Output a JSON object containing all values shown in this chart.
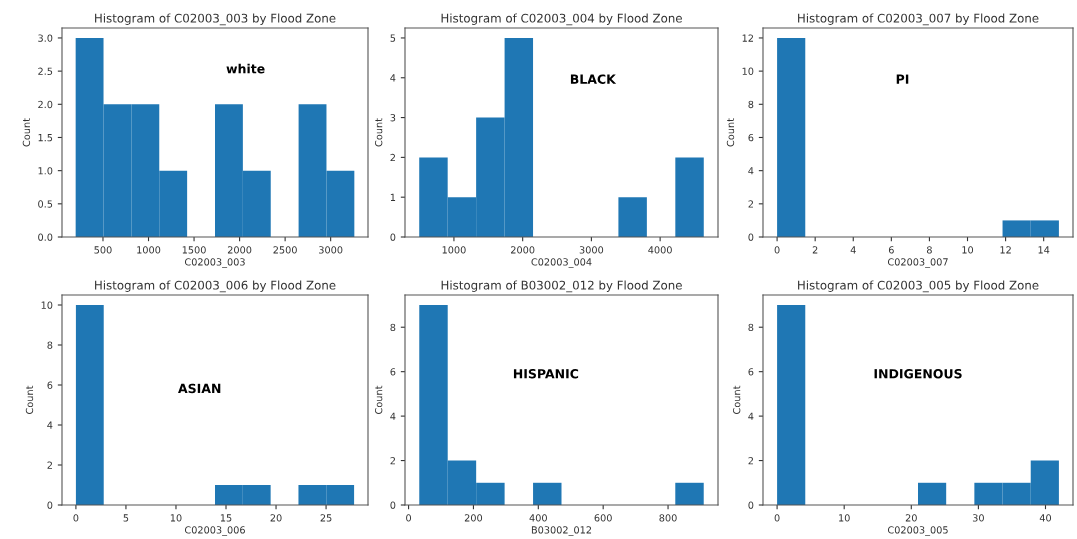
{
  "chart_data": [
    {
      "type": "histogram",
      "title": "Histogram of C02003_003 by Flood Zone",
      "xlabel": "C02003_003",
      "ylabel": "Count",
      "annotations": [
        "white"
      ],
      "color": "#1f77b4",
      "bins": [
        200,
        506,
        812,
        1118,
        1424,
        1730,
        2036,
        2342,
        2648,
        2954,
        3260
      ],
      "values": [
        3,
        2,
        2,
        1,
        0,
        2,
        1,
        0,
        2,
        1
      ],
      "xlim": [
        50,
        3410
      ],
      "xticks": [
        500,
        1000,
        1500,
        2000,
        2500,
        3000
      ],
      "ylim": [
        0,
        3.15
      ],
      "yticks": [
        {
          "value": 0,
          "label": "0.0"
        },
        {
          "value": 0.5,
          "label": "0.5"
        },
        {
          "value": 1,
          "label": "1.0"
        },
        {
          "value": 1.5,
          "label": "1.5"
        },
        {
          "value": 2,
          "label": "2.0"
        },
        {
          "value": 2.5,
          "label": "2.5"
        },
        {
          "value": 3,
          "label": "3.0"
        }
      ]
    },
    {
      "type": "histogram",
      "title": "Histogram of C02003_004 by Flood Zone",
      "xlabel": "C02003_004",
      "ylabel": "Count",
      "annotations": [
        "BLACK"
      ],
      "color": "#1f77b4",
      "bins": [
        495,
        909,
        1323,
        1737,
        2151,
        2565,
        2979,
        3393,
        3807,
        4221,
        4635
      ],
      "values": [
        2,
        1,
        3,
        5,
        0,
        0,
        0,
        1,
        0,
        2
      ],
      "xlim": [
        288,
        4842
      ],
      "xticks": [
        1000,
        2000,
        3000,
        4000
      ],
      "ylim": [
        0,
        5.25
      ],
      "yticks": [
        0,
        1,
        2,
        3,
        4,
        5
      ]
    },
    {
      "type": "histogram",
      "title": "Histogram of C02003_007 by Flood Zone",
      "xlabel": "C02003_007",
      "ylabel": "Count",
      "annotations": [
        "PI"
      ],
      "color": "#1f77b4",
      "bins": [
        0,
        1.48,
        2.96,
        4.44,
        5.92,
        7.4,
        8.88,
        10.36,
        11.84,
        13.32,
        14.8
      ],
      "values": [
        12,
        0,
        0,
        0,
        0,
        0,
        0,
        0,
        1,
        1
      ],
      "xlim": [
        -0.74,
        15.54
      ],
      "xticks": [
        0,
        2,
        4,
        6,
        8,
        10,
        12,
        14
      ],
      "ylim": [
        0,
        12.6
      ],
      "yticks": [
        0,
        2,
        4,
        6,
        8,
        10,
        12
      ]
    },
    {
      "type": "histogram",
      "title": "Histogram of C02003_006 by Flood Zone",
      "xlabel": "C02003_006",
      "ylabel": "Count",
      "annotations": [
        "ASIAN"
      ],
      "color": "#1f77b4",
      "bins": [
        0,
        2.78,
        5.56,
        8.34,
        11.12,
        13.9,
        16.68,
        19.46,
        22.24,
        25.02,
        27.8
      ],
      "values": [
        10,
        0,
        0,
        0,
        0,
        1,
        1,
        0,
        1,
        1
      ],
      "xlim": [
        -1.39,
        29.19
      ],
      "xticks": [
        0,
        5,
        10,
        15,
        20,
        25
      ],
      "ylim": [
        0,
        10.5
      ],
      "yticks": [
        0,
        2,
        4,
        6,
        8,
        10
      ]
    },
    {
      "type": "histogram",
      "title": "Histogram of B03002_012 by Flood Zone",
      "xlabel": "B03002_012",
      "ylabel": "Count",
      "annotations": [
        "HISPANIC"
      ],
      "color": "#1f77b4",
      "bins": [
        33,
        120.7,
        208.4,
        296.1,
        383.8,
        471.5,
        559.2,
        646.9,
        734.6,
        822.3,
        910
      ],
      "values": [
        9,
        2,
        1,
        0,
        1,
        0,
        0,
        0,
        0,
        1
      ],
      "xlim": [
        -11,
        954
      ],
      "xticks": [
        0,
        200,
        400,
        600,
        800
      ],
      "ylim": [
        0,
        9.45
      ],
      "yticks": [
        0,
        2,
        4,
        6,
        8
      ]
    },
    {
      "type": "histogram",
      "title": "Histogram of C02003_005 by Flood Zone",
      "xlabel": "C02003_005",
      "ylabel": "Count",
      "annotations": [
        "INDIGENOUS"
      ],
      "color": "#1f77b4",
      "bins": [
        0,
        4.2,
        8.4,
        12.6,
        16.8,
        21,
        25.2,
        29.4,
        33.6,
        37.8,
        42
      ],
      "values": [
        9,
        0,
        0,
        0,
        0,
        1,
        0,
        1,
        1,
        2
      ],
      "xlim": [
        -2.1,
        44.1
      ],
      "xticks": [
        0,
        10,
        20,
        30,
        40
      ],
      "ylim": [
        0,
        9.45
      ],
      "yticks": [
        0,
        2,
        4,
        6,
        8
      ]
    }
  ]
}
